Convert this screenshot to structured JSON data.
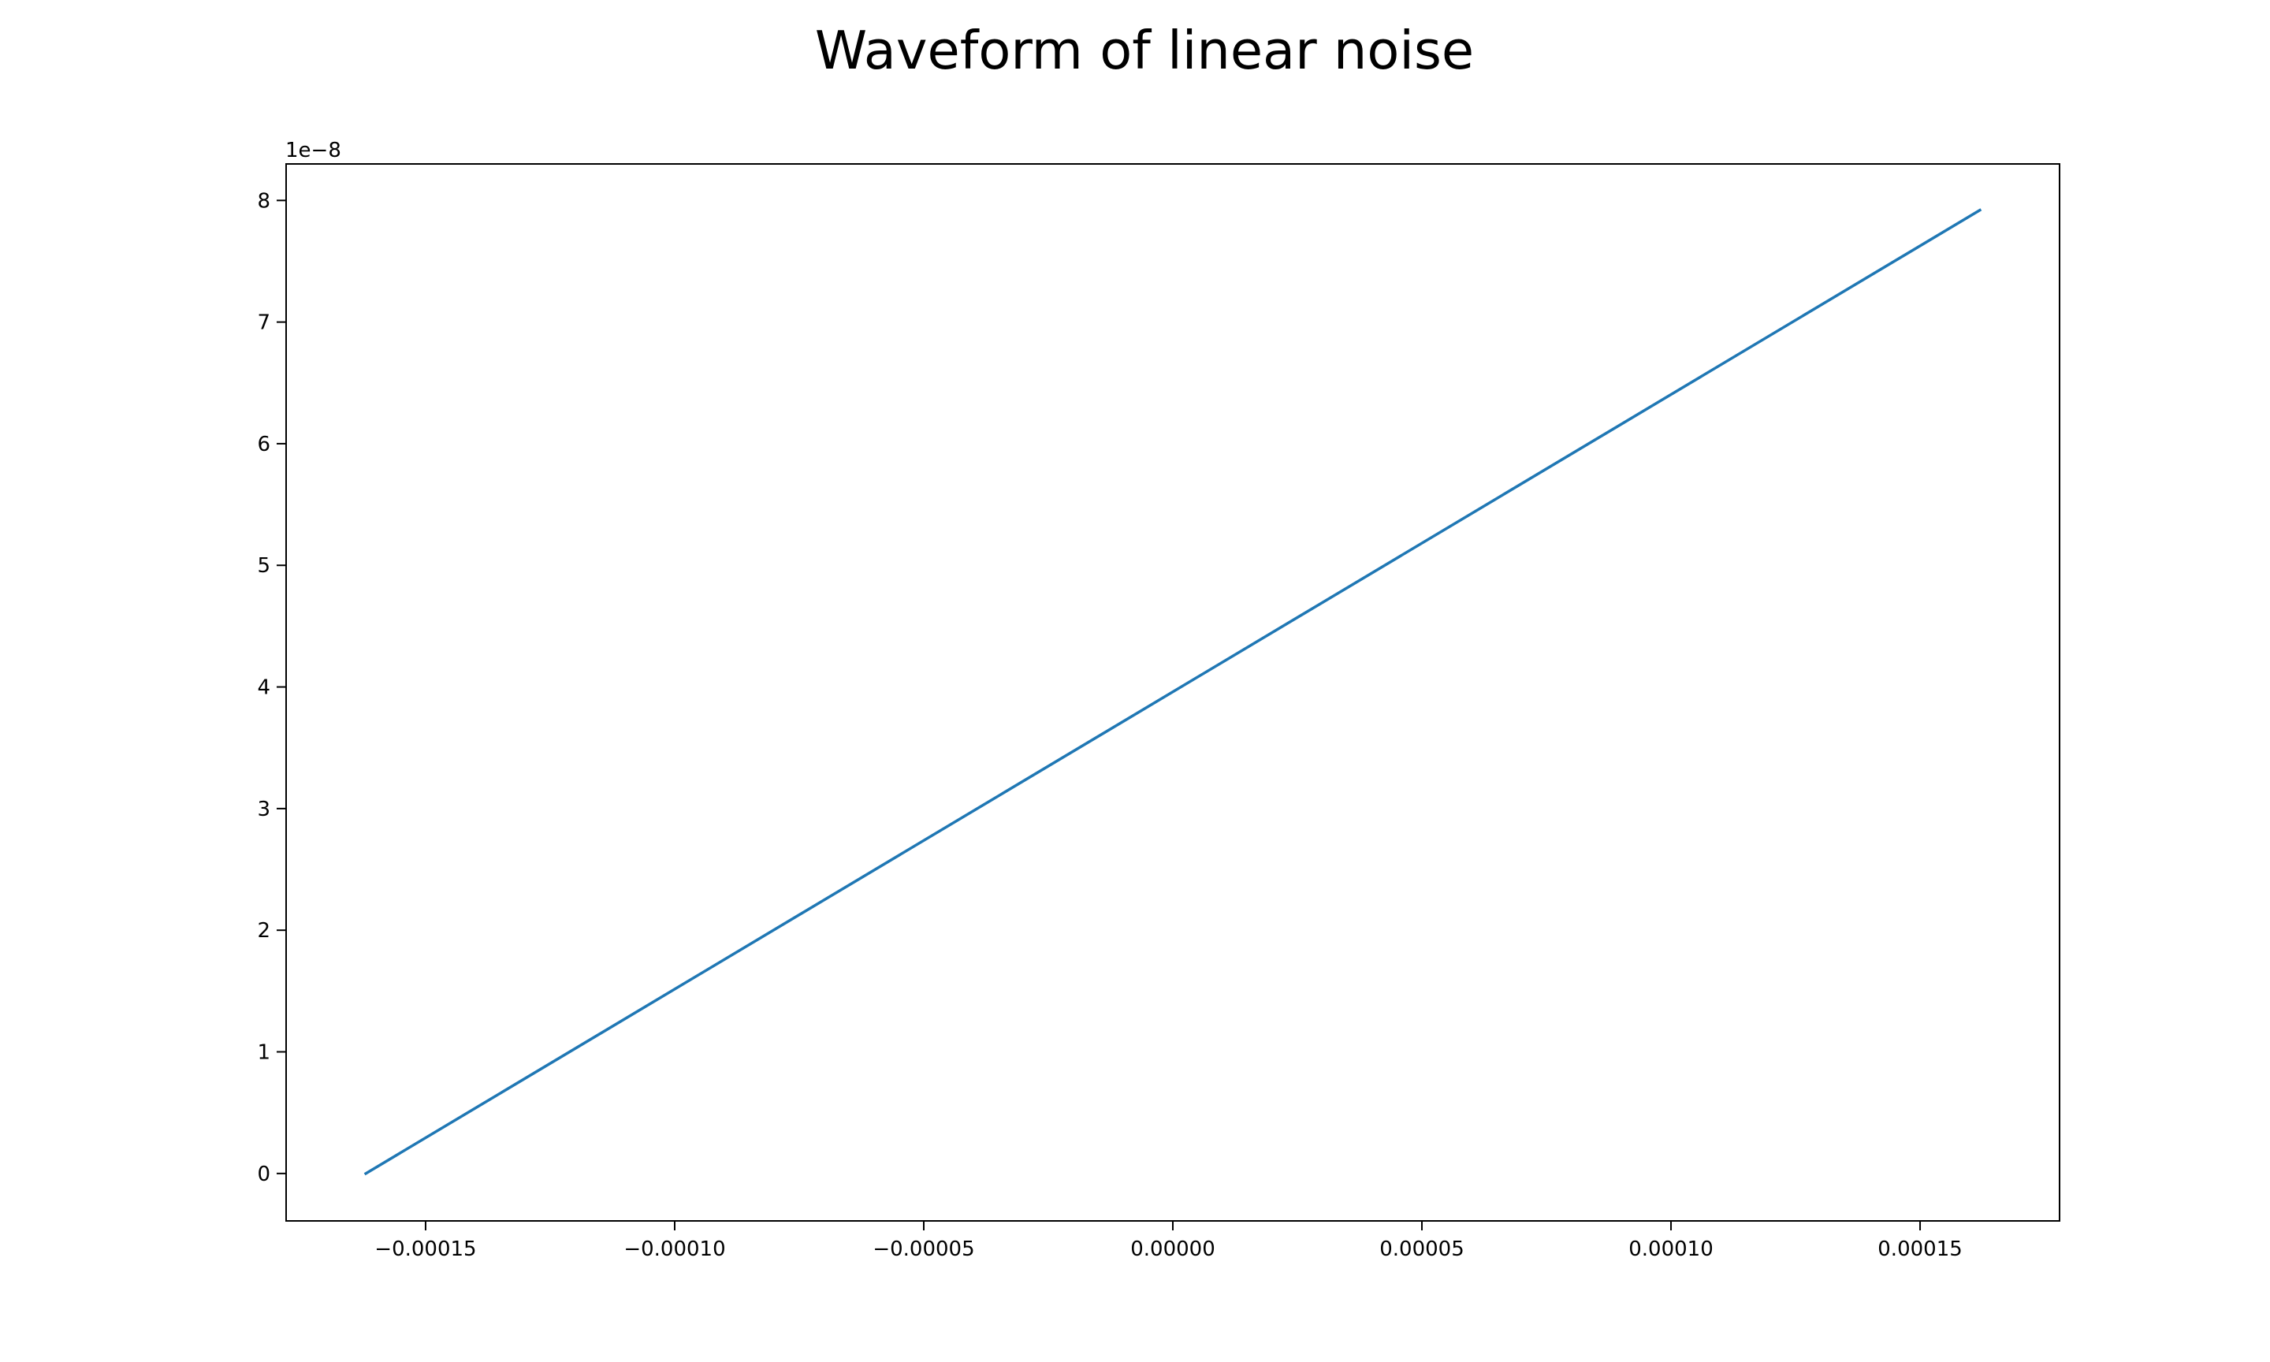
{
  "chart_data": {
    "type": "line",
    "title": "Waveform of linear noise",
    "xlabel": "",
    "ylabel": "",
    "y_offset_label": "1e−8",
    "xlim": [
      -0.000178,
      0.000178
    ],
    "ylim": [
      -0.39,
      8.3
    ],
    "x_ticks": [
      {
        "value": -0.00015,
        "label": "−0.00015"
      },
      {
        "value": -0.0001,
        "label": "−0.00010"
      },
      {
        "value": -5e-05,
        "label": "−0.00005"
      },
      {
        "value": 0.0,
        "label": "0.00000"
      },
      {
        "value": 5e-05,
        "label": "0.00005"
      },
      {
        "value": 0.0001,
        "label": "0.00010"
      },
      {
        "value": 0.00015,
        "label": "0.00015"
      }
    ],
    "y_ticks": [
      {
        "value": 0,
        "label": "0"
      },
      {
        "value": 1,
        "label": "1"
      },
      {
        "value": 2,
        "label": "2"
      },
      {
        "value": 3,
        "label": "3"
      },
      {
        "value": 4,
        "label": "4"
      },
      {
        "value": 5,
        "label": "5"
      },
      {
        "value": 6,
        "label": "6"
      },
      {
        "value": 7,
        "label": "7"
      },
      {
        "value": 8,
        "label": "8"
      }
    ],
    "grid": false,
    "series": [
      {
        "color": "#1f77b4",
        "x": [
          -0.000162,
          0.000162
        ],
        "y": [
          0.0,
          7.92
        ]
      }
    ]
  }
}
